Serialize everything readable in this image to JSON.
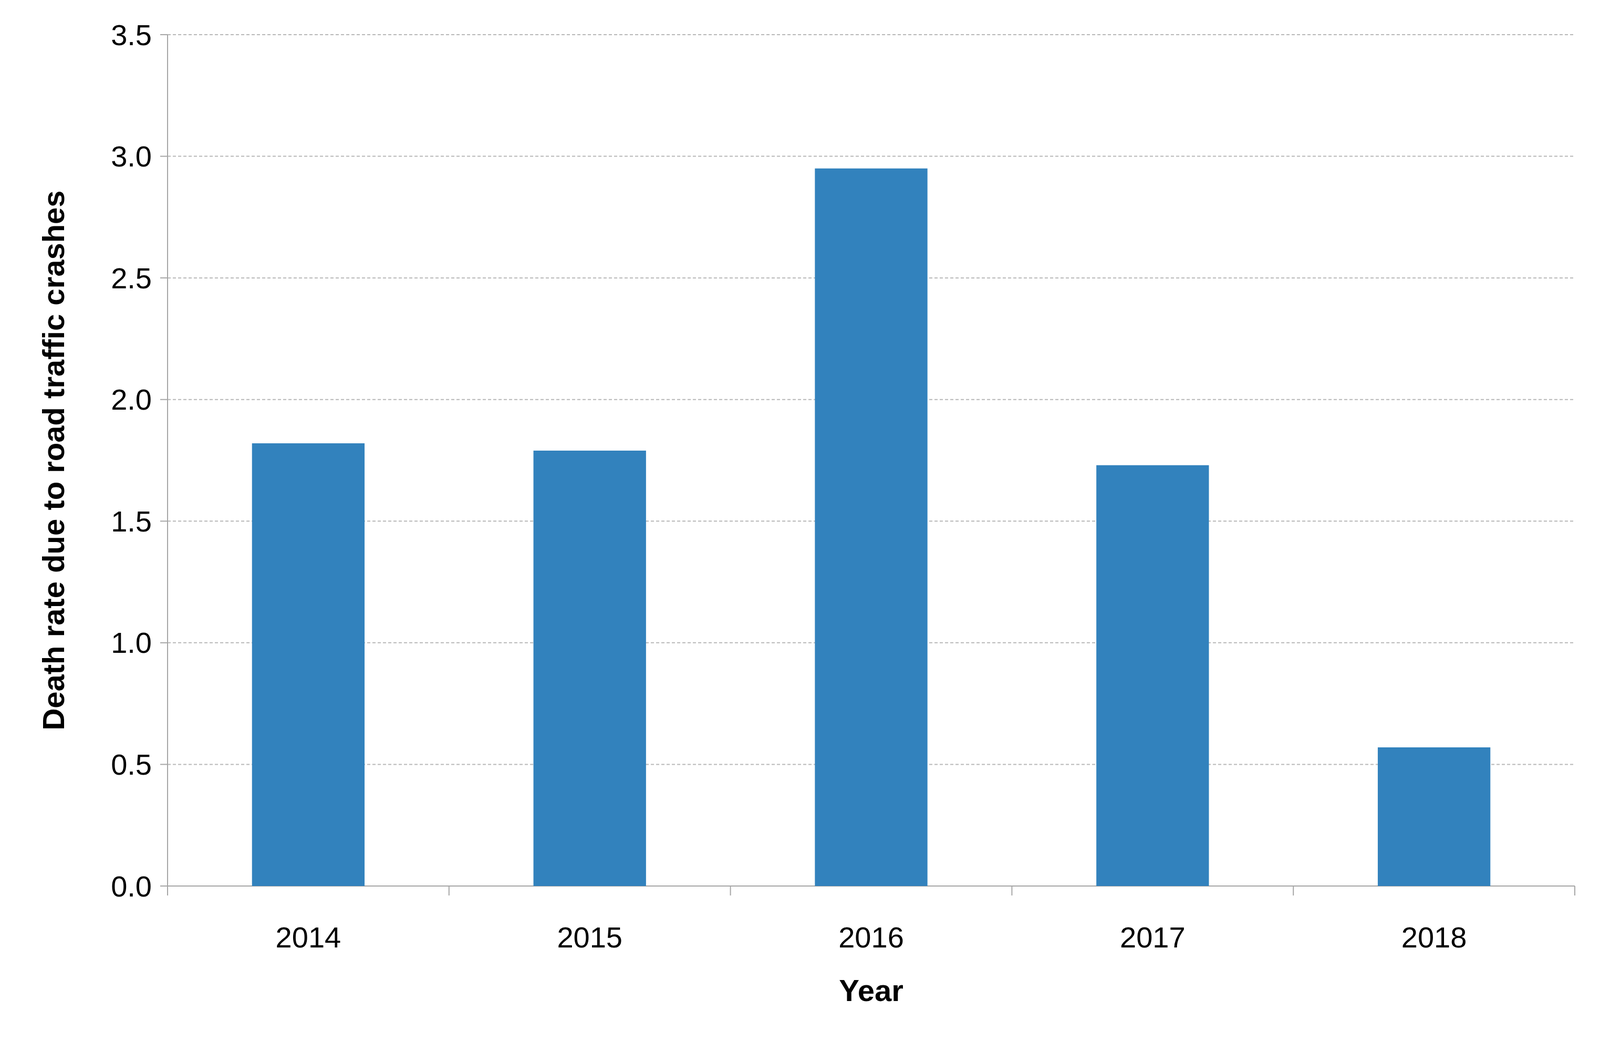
{
  "chart_data": {
    "type": "bar",
    "x_label": "Year",
    "y_label": "Death rate due to road traffic crashes",
    "categories": [
      "2014",
      "2015",
      "2016",
      "2017",
      "2018"
    ],
    "values": [
      1.82,
      1.79,
      2.95,
      1.73,
      0.57
    ],
    "color": "#3282bd",
    "ylim": [
      0,
      3.5
    ],
    "yticks": [
      {
        "value": 0,
        "label": "0.0"
      },
      0.5,
      {
        "value": 1,
        "label": "1.0"
      },
      1.5,
      {
        "value": 2,
        "label": "2.0"
      },
      2.5,
      {
        "value": 3,
        "label": "3.0"
      },
      3.5
    ],
    "grid": true
  }
}
